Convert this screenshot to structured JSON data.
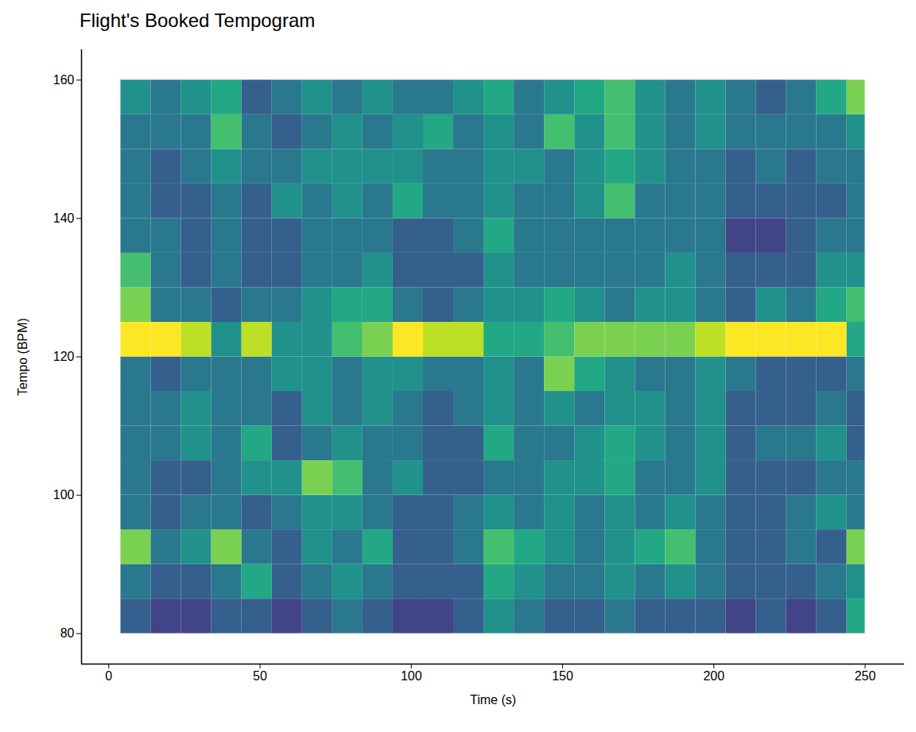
{
  "chart_data": {
    "type": "heatmap",
    "title": "Flight's Booked Tempogram",
    "x_label": "Time (s)",
    "y_label": "Tempo (BPM)",
    "xlim": [
      -9,
      263
    ],
    "ylim": [
      75.6,
      164.4
    ],
    "xticks": [
      0,
      50,
      100,
      150,
      200,
      250
    ],
    "yticks": [
      80,
      100,
      120,
      140,
      160
    ],
    "grid": false,
    "color": "viridis",
    "zlim": [
      0,
      1
    ],
    "x_edges": [
      4,
      14,
      24,
      34,
      44,
      54,
      64,
      74,
      84,
      94,
      104,
      114,
      124,
      134,
      144,
      154,
      164,
      174,
      184,
      194,
      204,
      214,
      224,
      234,
      244,
      250
    ],
    "y_edges": [
      80,
      85,
      90,
      95,
      100,
      105,
      110,
      115,
      120,
      125,
      130,
      135,
      140,
      145,
      150,
      155,
      160
    ],
    "z": [
      [
        0.3,
        0.2,
        0.2,
        0.3,
        0.3,
        0.2,
        0.3,
        0.4,
        0.3,
        0.2,
        0.2,
        0.3,
        0.5,
        0.4,
        0.3,
        0.3,
        0.4,
        0.3,
        0.3,
        0.3,
        0.2,
        0.3,
        0.2,
        0.3,
        0.6
      ],
      [
        0.4,
        0.3,
        0.3,
        0.4,
        0.6,
        0.3,
        0.4,
        0.5,
        0.4,
        0.3,
        0.3,
        0.3,
        0.6,
        0.5,
        0.4,
        0.4,
        0.5,
        0.4,
        0.5,
        0.4,
        0.3,
        0.3,
        0.3,
        0.4,
        0.5
      ],
      [
        0.8,
        0.4,
        0.5,
        0.8,
        0.4,
        0.3,
        0.5,
        0.4,
        0.6,
        0.3,
        0.3,
        0.4,
        0.7,
        0.6,
        0.5,
        0.4,
        0.5,
        0.6,
        0.7,
        0.4,
        0.3,
        0.3,
        0.4,
        0.3,
        0.8
      ],
      [
        0.4,
        0.3,
        0.4,
        0.4,
        0.3,
        0.4,
        0.5,
        0.5,
        0.4,
        0.3,
        0.3,
        0.4,
        0.5,
        0.4,
        0.5,
        0.4,
        0.5,
        0.4,
        0.5,
        0.4,
        0.3,
        0.3,
        0.4,
        0.5,
        0.4
      ],
      [
        0.4,
        0.3,
        0.3,
        0.4,
        0.5,
        0.5,
        0.8,
        0.7,
        0.4,
        0.5,
        0.3,
        0.3,
        0.4,
        0.4,
        0.5,
        0.5,
        0.6,
        0.4,
        0.4,
        0.5,
        0.3,
        0.3,
        0.3,
        0.4,
        0.4
      ],
      [
        0.4,
        0.4,
        0.5,
        0.4,
        0.6,
        0.3,
        0.4,
        0.5,
        0.4,
        0.4,
        0.3,
        0.3,
        0.6,
        0.4,
        0.4,
        0.5,
        0.6,
        0.5,
        0.4,
        0.5,
        0.3,
        0.4,
        0.4,
        0.5,
        0.3
      ],
      [
        0.4,
        0.4,
        0.5,
        0.4,
        0.4,
        0.3,
        0.5,
        0.4,
        0.5,
        0.4,
        0.3,
        0.4,
        0.5,
        0.4,
        0.5,
        0.4,
        0.5,
        0.5,
        0.4,
        0.5,
        0.3,
        0.3,
        0.3,
        0.4,
        0.3
      ],
      [
        0.4,
        0.3,
        0.4,
        0.4,
        0.4,
        0.5,
        0.5,
        0.4,
        0.5,
        0.5,
        0.4,
        0.4,
        0.5,
        0.4,
        0.8,
        0.6,
        0.5,
        0.4,
        0.4,
        0.5,
        0.4,
        0.3,
        0.3,
        0.3,
        0.4
      ],
      [
        1.0,
        1.0,
        0.9,
        0.5,
        0.9,
        0.5,
        0.5,
        0.7,
        0.8,
        1.0,
        0.9,
        0.9,
        0.6,
        0.6,
        0.7,
        0.8,
        0.8,
        0.8,
        0.8,
        0.9,
        1.0,
        1.0,
        1.0,
        1.0,
        0.6
      ],
      [
        0.8,
        0.4,
        0.4,
        0.3,
        0.4,
        0.4,
        0.5,
        0.6,
        0.6,
        0.4,
        0.3,
        0.4,
        0.5,
        0.5,
        0.6,
        0.5,
        0.4,
        0.5,
        0.5,
        0.4,
        0.3,
        0.5,
        0.4,
        0.6,
        0.7
      ],
      [
        0.7,
        0.4,
        0.3,
        0.4,
        0.3,
        0.3,
        0.4,
        0.4,
        0.5,
        0.3,
        0.3,
        0.3,
        0.5,
        0.4,
        0.4,
        0.4,
        0.4,
        0.4,
        0.5,
        0.4,
        0.3,
        0.3,
        0.3,
        0.5,
        0.5
      ],
      [
        0.4,
        0.4,
        0.3,
        0.4,
        0.3,
        0.3,
        0.4,
        0.4,
        0.4,
        0.3,
        0.3,
        0.4,
        0.6,
        0.4,
        0.4,
        0.4,
        0.4,
        0.4,
        0.4,
        0.4,
        0.2,
        0.2,
        0.3,
        0.4,
        0.4
      ],
      [
        0.4,
        0.3,
        0.3,
        0.4,
        0.3,
        0.5,
        0.4,
        0.5,
        0.4,
        0.6,
        0.4,
        0.4,
        0.5,
        0.4,
        0.4,
        0.5,
        0.7,
        0.4,
        0.4,
        0.4,
        0.3,
        0.3,
        0.3,
        0.3,
        0.4
      ],
      [
        0.4,
        0.3,
        0.4,
        0.5,
        0.4,
        0.4,
        0.5,
        0.5,
        0.5,
        0.5,
        0.4,
        0.4,
        0.5,
        0.5,
        0.4,
        0.5,
        0.6,
        0.5,
        0.4,
        0.4,
        0.3,
        0.4,
        0.3,
        0.4,
        0.4
      ],
      [
        0.4,
        0.4,
        0.4,
        0.7,
        0.4,
        0.3,
        0.4,
        0.5,
        0.4,
        0.5,
        0.6,
        0.4,
        0.5,
        0.4,
        0.7,
        0.5,
        0.7,
        0.5,
        0.4,
        0.5,
        0.4,
        0.4,
        0.4,
        0.4,
        0.5
      ],
      [
        0.5,
        0.4,
        0.5,
        0.6,
        0.3,
        0.4,
        0.5,
        0.4,
        0.5,
        0.4,
        0.4,
        0.5,
        0.6,
        0.4,
        0.5,
        0.6,
        0.7,
        0.5,
        0.4,
        0.5,
        0.4,
        0.3,
        0.4,
        0.6,
        0.8
      ]
    ]
  }
}
